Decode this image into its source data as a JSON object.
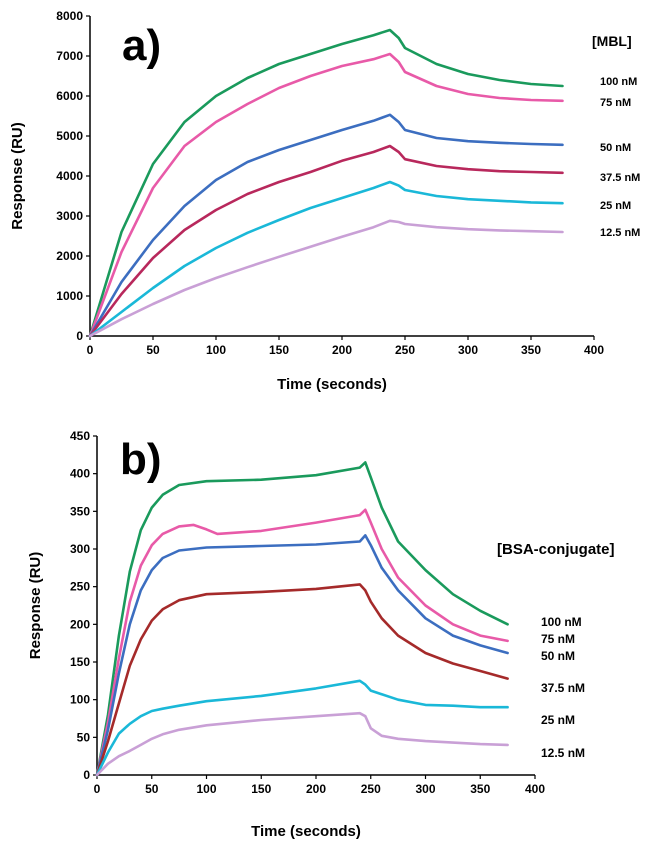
{
  "chart_data": [
    {
      "type": "line",
      "panel_label": "a)",
      "xlabel": "Time (seconds)",
      "ylabel": "Response (RU)",
      "xlim": [
        0,
        400
      ],
      "ylim": [
        0,
        8000
      ],
      "xticks": [
        0,
        50,
        100,
        150,
        200,
        250,
        300,
        350,
        400
      ],
      "yticks": [
        0,
        1000,
        2000,
        3000,
        4000,
        5000,
        6000,
        7000,
        8000
      ],
      "legend_title": "[MBL]",
      "grid": false,
      "series": [
        {
          "name": "100 nM",
          "color": "#1a9a5c",
          "x": [
            0,
            25,
            50,
            75,
            100,
            125,
            150,
            175,
            200,
            225,
            238,
            245,
            250,
            275,
            300,
            325,
            350,
            375
          ],
          "y": [
            0,
            2600,
            4300,
            5350,
            6000,
            6450,
            6800,
            7050,
            7300,
            7520,
            7650,
            7450,
            7200,
            6800,
            6550,
            6400,
            6300,
            6250
          ]
        },
        {
          "name": "75 nM",
          "color": "#e85aa8",
          "x": [
            0,
            25,
            50,
            75,
            100,
            125,
            150,
            175,
            200,
            225,
            238,
            245,
            250,
            275,
            300,
            325,
            350,
            375
          ],
          "y": [
            0,
            2100,
            3700,
            4750,
            5350,
            5800,
            6200,
            6500,
            6750,
            6920,
            7050,
            6850,
            6600,
            6250,
            6050,
            5950,
            5900,
            5880
          ]
        },
        {
          "name": "50 nM",
          "color": "#3c6ec0",
          "x": [
            0,
            25,
            50,
            75,
            100,
            125,
            150,
            175,
            200,
            225,
            238,
            245,
            250,
            275,
            300,
            325,
            350,
            375
          ],
          "y": [
            0,
            1350,
            2400,
            3250,
            3900,
            4350,
            4650,
            4900,
            5150,
            5380,
            5530,
            5350,
            5150,
            4950,
            4870,
            4830,
            4800,
            4780
          ]
        },
        {
          "name": "37.5 nM",
          "color": "#b8285c",
          "x": [
            0,
            25,
            50,
            75,
            100,
            125,
            150,
            175,
            200,
            225,
            238,
            245,
            250,
            275,
            300,
            325,
            350,
            375
          ],
          "y": [
            0,
            1050,
            1950,
            2650,
            3150,
            3550,
            3850,
            4100,
            4380,
            4600,
            4750,
            4600,
            4420,
            4250,
            4170,
            4120,
            4100,
            4080
          ]
        },
        {
          "name": "25 nM",
          "color": "#1ab8d8",
          "x": [
            0,
            25,
            50,
            75,
            100,
            125,
            150,
            175,
            200,
            225,
            238,
            245,
            250,
            275,
            300,
            325,
            350,
            375
          ],
          "y": [
            0,
            600,
            1200,
            1750,
            2200,
            2580,
            2900,
            3200,
            3450,
            3700,
            3850,
            3760,
            3650,
            3500,
            3420,
            3380,
            3340,
            3320
          ]
        },
        {
          "name": "12.5 nM",
          "color": "#c9a0d6",
          "x": [
            0,
            25,
            50,
            75,
            100,
            125,
            150,
            175,
            200,
            225,
            238,
            245,
            250,
            275,
            300,
            325,
            350,
            375
          ],
          "y": [
            0,
            420,
            800,
            1150,
            1450,
            1720,
            1980,
            2230,
            2480,
            2720,
            2880,
            2850,
            2800,
            2720,
            2670,
            2640,
            2620,
            2600
          ]
        }
      ]
    },
    {
      "type": "line",
      "panel_label": "b)",
      "xlabel": "Time (seconds)",
      "ylabel": "Response (RU)",
      "xlim": [
        0,
        400
      ],
      "ylim": [
        0,
        450
      ],
      "xticks": [
        0,
        50,
        100,
        150,
        200,
        250,
        300,
        350,
        400
      ],
      "yticks": [
        0,
        50,
        100,
        150,
        200,
        250,
        300,
        350,
        400,
        450
      ],
      "legend_title": "[BSA-conjugate]",
      "grid": false,
      "series": [
        {
          "name": "100 nM",
          "color": "#1a9a5c",
          "x": [
            0,
            10,
            20,
            30,
            40,
            50,
            60,
            75,
            100,
            150,
            200,
            240,
            245,
            250,
            260,
            275,
            300,
            325,
            350,
            375
          ],
          "y": [
            0,
            80,
            185,
            270,
            325,
            355,
            372,
            385,
            390,
            392,
            398,
            408,
            415,
            395,
            355,
            310,
            272,
            240,
            218,
            200
          ]
        },
        {
          "name": "75 nM",
          "color": "#e85aa8",
          "x": [
            0,
            10,
            20,
            30,
            40,
            50,
            60,
            75,
            88,
            100,
            110,
            150,
            200,
            240,
            245,
            250,
            260,
            275,
            300,
            325,
            350,
            375
          ],
          "y": [
            0,
            70,
            155,
            230,
            278,
            305,
            320,
            330,
            332,
            326,
            320,
            324,
            335,
            345,
            352,
            335,
            300,
            262,
            225,
            200,
            185,
            178
          ]
        },
        {
          "name": "50 nM",
          "color": "#3c6ec0",
          "x": [
            0,
            10,
            20,
            30,
            40,
            50,
            60,
            75,
            100,
            150,
            200,
            240,
            245,
            250,
            260,
            275,
            300,
            325,
            350,
            375
          ],
          "y": [
            0,
            60,
            135,
            200,
            245,
            272,
            288,
            298,
            302,
            304,
            306,
            310,
            318,
            305,
            275,
            245,
            208,
            185,
            172,
            162
          ]
        },
        {
          "name": "37.5 nM",
          "color": "#a52a2a",
          "x": [
            0,
            10,
            20,
            30,
            40,
            50,
            60,
            75,
            100,
            150,
            200,
            240,
            245,
            250,
            260,
            275,
            300,
            325,
            350,
            375
          ],
          "y": [
            0,
            45,
            95,
            145,
            180,
            205,
            220,
            232,
            240,
            243,
            247,
            253,
            245,
            230,
            208,
            185,
            162,
            148,
            138,
            128
          ]
        },
        {
          "name": "25 nM",
          "color": "#1ab8d8",
          "x": [
            0,
            10,
            20,
            30,
            40,
            50,
            60,
            75,
            100,
            150,
            200,
            240,
            245,
            250,
            275,
            300,
            325,
            350,
            375
          ],
          "y": [
            0,
            30,
            55,
            68,
            78,
            85,
            88,
            92,
            98,
            105,
            115,
            125,
            120,
            112,
            100,
            93,
            92,
            90,
            90
          ]
        },
        {
          "name": "12.5 nM",
          "color": "#c9a0d6",
          "x": [
            0,
            10,
            20,
            30,
            40,
            50,
            60,
            75,
            100,
            150,
            200,
            240,
            245,
            250,
            260,
            275,
            300,
            325,
            350,
            375
          ],
          "y": [
            0,
            15,
            25,
            32,
            40,
            48,
            54,
            60,
            66,
            73,
            78,
            82,
            78,
            62,
            52,
            48,
            45,
            43,
            41,
            40
          ]
        }
      ]
    }
  ]
}
